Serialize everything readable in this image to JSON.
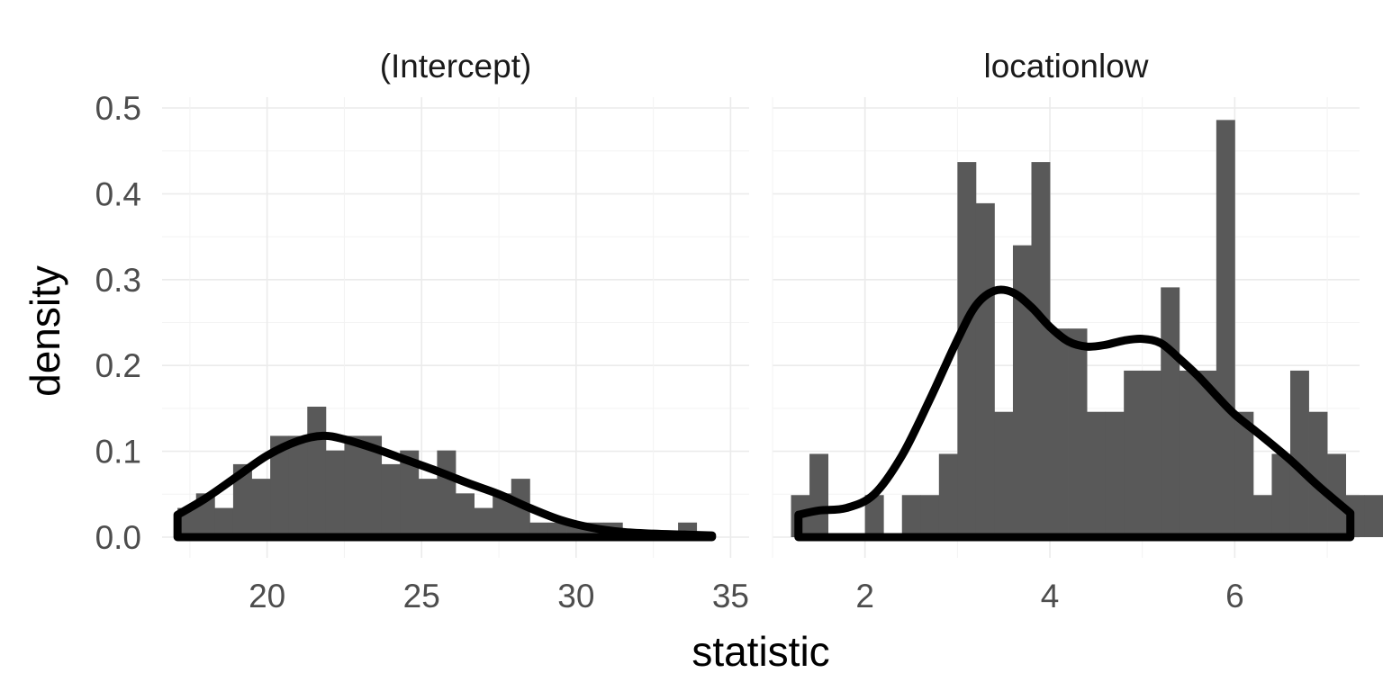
{
  "chart_data": {
    "type": "bar",
    "layout": "facet",
    "xlabel": "statistic",
    "ylabel": "density",
    "ylim": [
      0,
      0.5
    ],
    "yticks": [
      "0.0",
      "0.1",
      "0.2",
      "0.3",
      "0.4",
      "0.5"
    ],
    "grid": true,
    "colors": {
      "bars": "#595959",
      "density_line": "#000000",
      "grid": "#ebebeb"
    },
    "panels": [
      {
        "title": "(Intercept)",
        "xlim": [
          16.6,
          35.6
        ],
        "xticks": [
          20,
          25,
          30,
          35
        ],
        "xtick_labels": [
          "20",
          "25",
          "30",
          "35"
        ],
        "histogram": {
          "bin_start": 17.1,
          "bin_width": 0.6,
          "values": [
            0.034,
            0.051,
            0.034,
            0.085,
            0.068,
            0.118,
            0.118,
            0.152,
            0.101,
            0.118,
            0.118,
            0.085,
            0.101,
            0.068,
            0.101,
            0.051,
            0.034,
            0.051,
            0.068,
            0.017,
            0.017,
            0.017,
            0.017,
            0.017,
            0,
            0,
            0,
            0.017
          ]
        },
        "density": {
          "x": [
            17.1,
            18,
            19,
            20,
            21,
            21.8,
            22.5,
            23.5,
            24.5,
            25.5,
            26.5,
            27.5,
            28.5,
            29.5,
            30.5,
            31.5,
            32.5,
            33.5,
            34.4
          ],
          "y": [
            0.026,
            0.045,
            0.07,
            0.095,
            0.112,
            0.118,
            0.114,
            0.103,
            0.09,
            0.077,
            0.063,
            0.05,
            0.034,
            0.02,
            0.011,
            0.006,
            0.004,
            0.003,
            0.002
          ]
        }
      },
      {
        "title": "locationlow",
        "xlim": [
          1.0,
          7.35
        ],
        "xticks": [
          2,
          4,
          6
        ],
        "xtick_labels": [
          "2",
          "4",
          "6"
        ],
        "histogram": {
          "bin_start": 1.2,
          "bin_width": 0.2,
          "values": [
            0.049,
            0.097,
            0.0,
            0.0,
            0.049,
            0.0,
            0.049,
            0.049,
            0.097,
            0.437,
            0.389,
            0.146,
            0.34,
            0.437,
            0.243,
            0.243,
            0.146,
            0.146,
            0.194,
            0.194,
            0.291,
            0.194,
            0.194,
            0.486,
            0.146,
            0.049,
            0.097,
            0.194,
            0.146,
            0.097,
            0.049,
            0.049
          ]
        },
        "density": {
          "x": [
            1.28,
            1.5,
            1.8,
            2.1,
            2.4,
            2.7,
            3.0,
            3.2,
            3.4,
            3.6,
            3.8,
            4.0,
            4.2,
            4.4,
            4.6,
            4.8,
            5.0,
            5.2,
            5.4,
            5.6,
            5.8,
            6.0,
            6.3,
            6.6,
            6.9,
            7.25
          ],
          "y": [
            0.026,
            0.031,
            0.034,
            0.05,
            0.095,
            0.16,
            0.23,
            0.27,
            0.287,
            0.285,
            0.268,
            0.245,
            0.228,
            0.222,
            0.224,
            0.229,
            0.231,
            0.226,
            0.208,
            0.188,
            0.165,
            0.143,
            0.117,
            0.09,
            0.06,
            0.028
          ]
        }
      }
    ]
  }
}
